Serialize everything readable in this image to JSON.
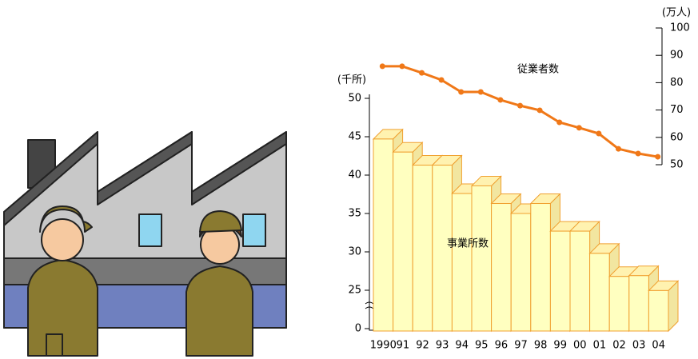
{
  "chart_data": {
    "type": "bar+line",
    "categories": [
      "1990",
      "91",
      "92",
      "93",
      "94",
      "95",
      "96",
      "97",
      "98",
      "99",
      "00",
      "01",
      "02",
      "03",
      "04"
    ],
    "ylabel": "(千所)",
    "y2label": "(万人)",
    "ylim": [
      0,
      50
    ],
    "yticks": [
      0,
      25,
      30,
      35,
      40,
      45,
      50
    ],
    "y_break": [
      0,
      25
    ],
    "y2lim": [
      50,
      100
    ],
    "y2ticks": [
      50,
      60,
      70,
      80,
      90,
      100
    ],
    "series": [
      {
        "name": "事業所数",
        "type": "bar",
        "color": "#ffffc0",
        "edge_color": "#f0a030",
        "values": [
          44.7,
          43.0,
          41.3,
          41.3,
          37.6,
          38.6,
          36.3,
          35.0,
          36.3,
          32.7,
          32.7,
          29.8,
          26.8,
          26.9,
          24.8
        ]
      },
      {
        "name": "従業者数",
        "type": "line",
        "axis": "y2",
        "color": "#f07818",
        "values": [
          86.0,
          86.0,
          83.6,
          81.0,
          76.6,
          76.6,
          73.7,
          71.6,
          69.9,
          65.5,
          63.5,
          61.4,
          55.8,
          54.1,
          52.9
        ]
      }
    ]
  }
}
